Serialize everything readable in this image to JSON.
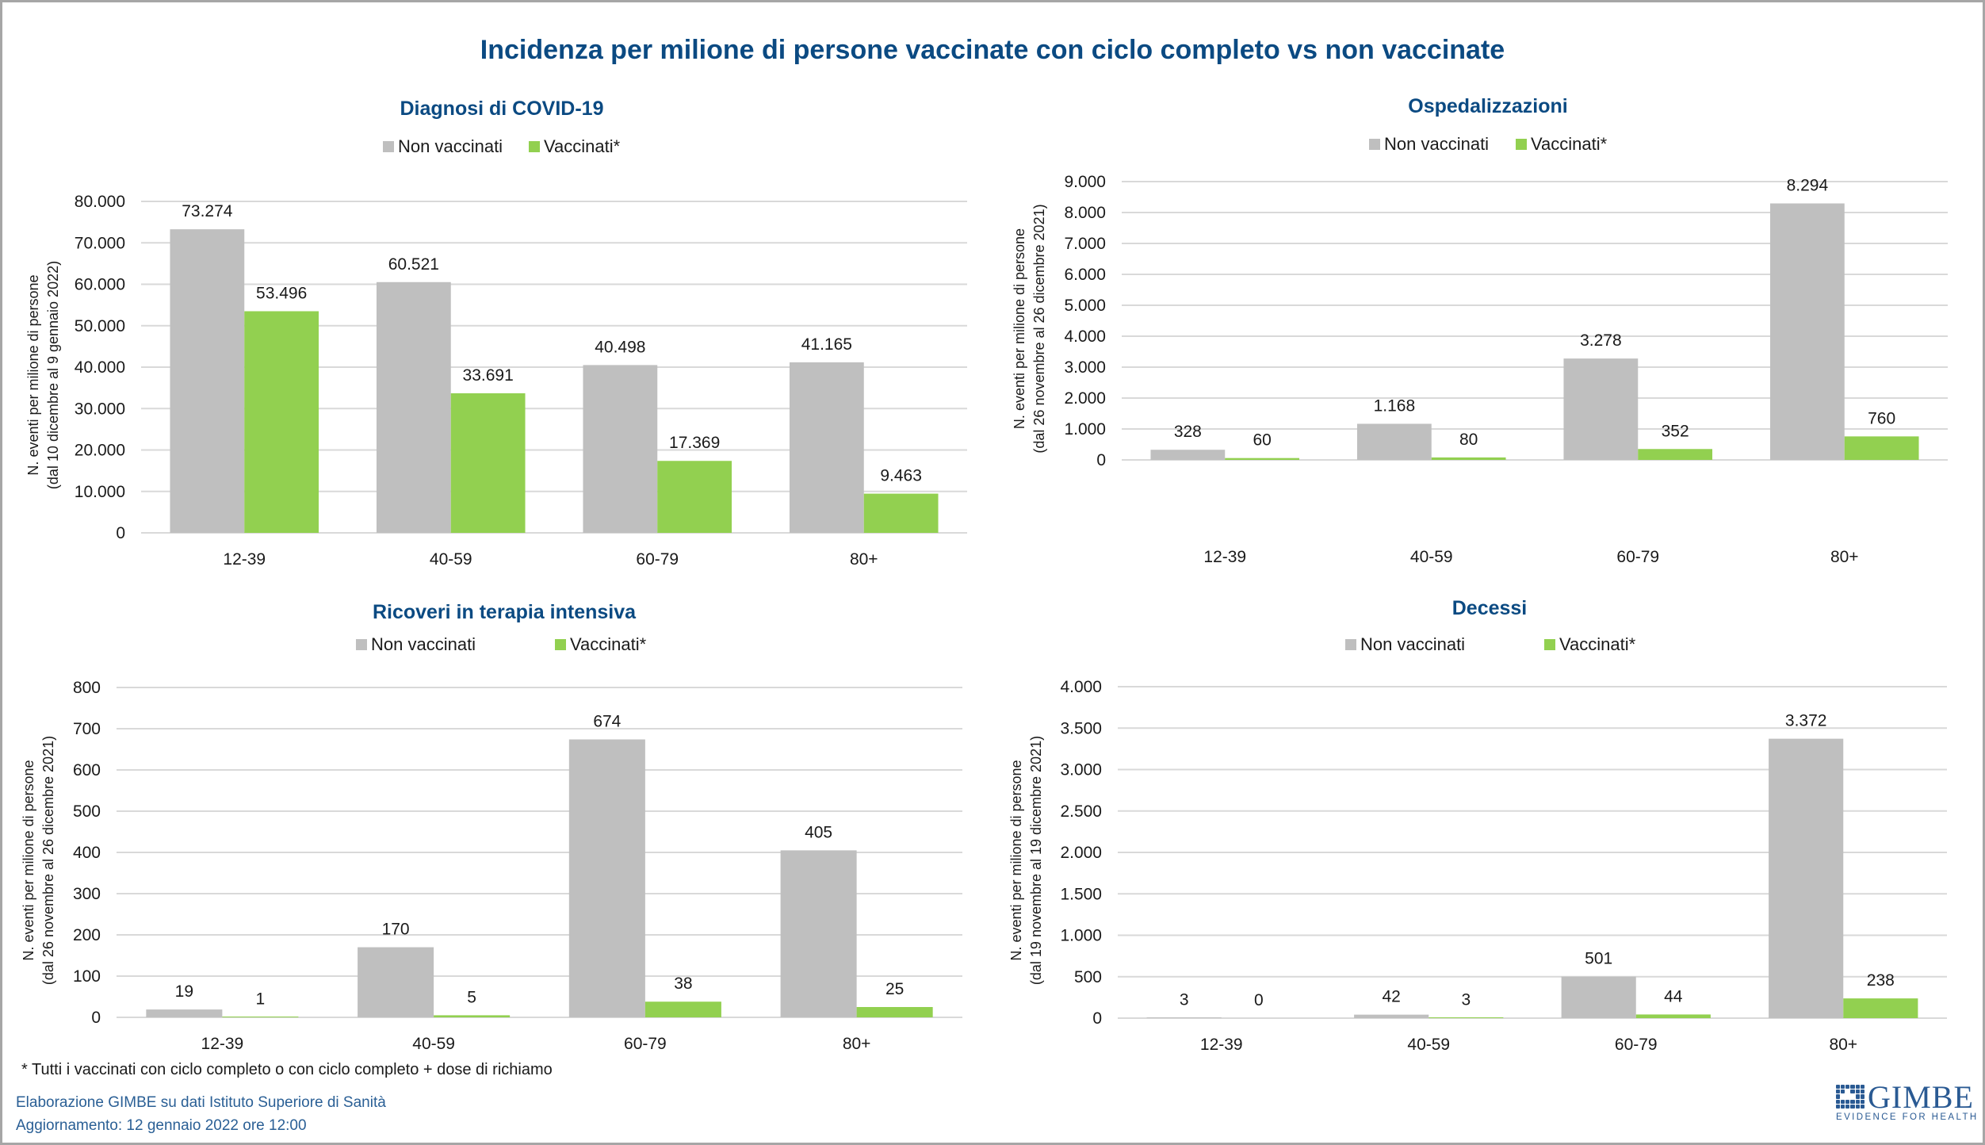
{
  "main_title": "Incidenza per milione di persone vaccinate con ciclo completo vs non vaccinate",
  "colors": {
    "non_vaccinati": "#bfbfbf",
    "vaccinati": "#92d050",
    "title": "#0b4a82",
    "grid": "#d9d9d9"
  },
  "legend": {
    "non_vaccinati": "Non vaccinati",
    "vaccinati": "Vaccinati*"
  },
  "footnote": "* Tutti i vaccinati con ciclo completo o con ciclo completo +  dose di richiamo",
  "source": {
    "line1": "Elaborazione GIMBE su dati Istituto Superiore di Sanità",
    "line2": "Aggiornamento: 12 gennaio 2022 ore 12:00"
  },
  "logo": {
    "name": "GIMBE",
    "tagline": "EVIDENCE FOR HEALTH",
    "icon": "grid-check-icon"
  },
  "chart_data": [
    {
      "type": "bar",
      "title": "Diagnosi di COVID-19",
      "categories": [
        "12-39",
        "40-59",
        "60-79",
        "80+"
      ],
      "series": [
        {
          "name": "Non vaccinati",
          "values": [
            73274,
            60521,
            40498,
            41165
          ],
          "labels": [
            "73.274",
            "60.521",
            "40.498",
            "41.165"
          ]
        },
        {
          "name": "Vaccinati*",
          "values": [
            53496,
            33691,
            17369,
            9463
          ],
          "labels": [
            "53.496",
            "33.691",
            "17.369",
            "9.463"
          ]
        }
      ],
      "ylabel": [
        "N. eventi per milione di persone",
        "(dal 10  dicembre al 9  gennaio 2022)"
      ],
      "ylim": [
        0,
        80000
      ],
      "yticks": [
        0,
        10000,
        20000,
        30000,
        40000,
        50000,
        60000,
        70000,
        80000
      ],
      "ytick_labels": [
        "0",
        "10.000",
        "20.000",
        "30.000",
        "40.000",
        "50.000",
        "60.000",
        "70.000",
        "80.000"
      ],
      "grid": true,
      "legend_position": "top-center"
    },
    {
      "type": "bar",
      "title": "Ospedalizzazioni",
      "categories": [
        "12-39",
        "40-59",
        "60-79",
        "80+"
      ],
      "series": [
        {
          "name": "Non vaccinati",
          "values": [
            328,
            1168,
            3278,
            8294
          ],
          "labels": [
            "328",
            "1.168",
            "3.278",
            "8.294"
          ]
        },
        {
          "name": "Vaccinati*",
          "values": [
            60,
            80,
            352,
            760
          ],
          "labels": [
            "60",
            "80",
            "352",
            "760"
          ]
        }
      ],
      "ylabel": [
        "N. eventi per milione di persone",
        "(dal 26  novembre al 26  dicembre 2021)"
      ],
      "ylim": [
        0,
        9000
      ],
      "yticks": [
        0,
        1000,
        2000,
        3000,
        4000,
        5000,
        6000,
        7000,
        8000,
        9000
      ],
      "ytick_labels": [
        "0",
        "1.000",
        "2.000",
        "3.000",
        "4.000",
        "5.000",
        "6.000",
        "7.000",
        "8.000",
        "9.000"
      ],
      "grid": true,
      "legend_position": "top-center"
    },
    {
      "type": "bar",
      "title": "Ricoveri in terapia intensiva",
      "categories": [
        "12-39",
        "40-59",
        "60-79",
        "80+"
      ],
      "series": [
        {
          "name": "Non vaccinati",
          "values": [
            19,
            170,
            674,
            405
          ],
          "labels": [
            "19",
            "170",
            "674",
            "405"
          ]
        },
        {
          "name": "Vaccinati*",
          "values": [
            1,
            5,
            38,
            25
          ],
          "labels": [
            "1",
            "5",
            "38",
            "25"
          ]
        }
      ],
      "ylabel": [
        "N. eventi per milione di persone",
        "(dal 26  novembre al 26  dicembre 2021)"
      ],
      "ylim": [
        0,
        800
      ],
      "yticks": [
        0,
        100,
        200,
        300,
        400,
        500,
        600,
        700,
        800
      ],
      "ytick_labels": [
        "0",
        "100",
        "200",
        "300",
        "400",
        "500",
        "600",
        "700",
        "800"
      ],
      "grid": true,
      "legend_position": "top-center"
    },
    {
      "type": "bar",
      "title": "Decessi",
      "categories": [
        "12-39",
        "40-59",
        "60-79",
        "80+"
      ],
      "series": [
        {
          "name": "Non vaccinati",
          "values": [
            3,
            42,
            501,
            3372
          ],
          "labels": [
            "3",
            "42",
            "501",
            "3.372"
          ]
        },
        {
          "name": "Vaccinati*",
          "values": [
            0,
            3,
            44,
            238
          ],
          "labels": [
            "0",
            "3",
            "44",
            "238"
          ]
        }
      ],
      "ylabel": [
        "N. eventi per milione di persone",
        "(dal 19  novembre al 19  dicembre 2021)"
      ],
      "ylim": [
        0,
        4000
      ],
      "yticks": [
        0,
        500,
        1000,
        1500,
        2000,
        2500,
        3000,
        3500,
        4000
      ],
      "ytick_labels": [
        "0",
        "500",
        "1.000",
        "1.500",
        "2.000",
        "2.500",
        "3.000",
        "3.500",
        "4.000"
      ],
      "grid": true,
      "legend_position": "top-center"
    }
  ]
}
